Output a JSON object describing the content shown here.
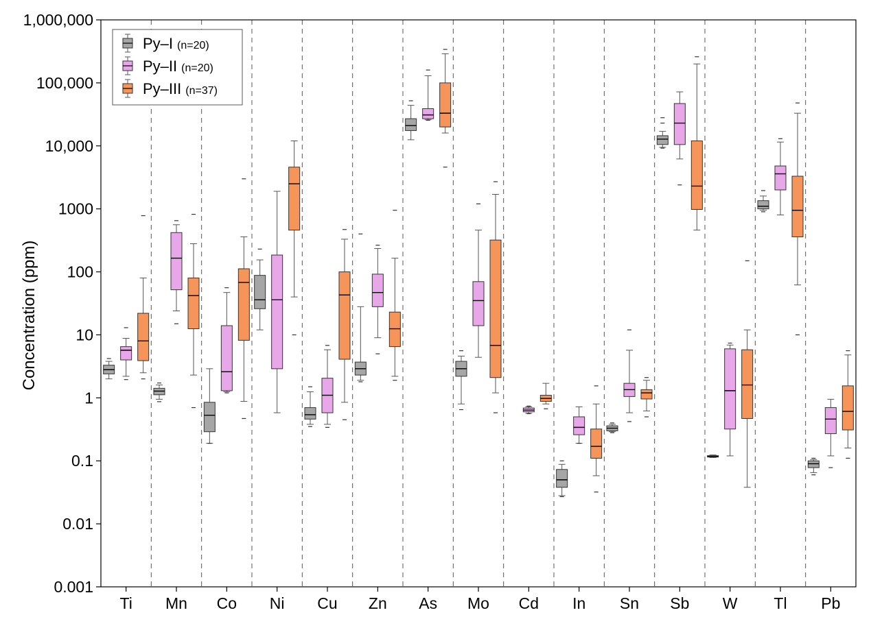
{
  "chart_data": {
    "type": "box",
    "ylabel": "Concentration (ppm)",
    "yscale": "log",
    "ylim": [
      0.001,
      1000000
    ],
    "yticks": [
      {
        "value": 0.001,
        "label": "0.001"
      },
      {
        "value": 0.01,
        "label": "0.01"
      },
      {
        "value": 0.1,
        "label": "0.1"
      },
      {
        "value": 1,
        "label": "1"
      },
      {
        "value": 10,
        "label": "10"
      },
      {
        "value": 100,
        "label": "100"
      },
      {
        "value": 1000,
        "label": "1000"
      },
      {
        "value": 10000,
        "label": "10,000"
      },
      {
        "value": 100000,
        "label": "100,000"
      },
      {
        "value": 1000000,
        "label": "1,000,000"
      }
    ],
    "categories": [
      "Ti",
      "Mn",
      "Co",
      "Ni",
      "Cu",
      "Zn",
      "As",
      "Mo",
      "Cd",
      "In",
      "Sn",
      "Sb",
      "W",
      "Tl",
      "Pb"
    ],
    "legend_position": "top-left",
    "series": [
      {
        "name": "Py–I",
        "n_label": "(n=20)",
        "color": "#a6a6a6",
        "boxes": [
          {
            "category": "Ti",
            "min": 2.0,
            "q1": 2.4,
            "median": 2.8,
            "q3": 3.3,
            "max": 3.8,
            "outliers": [
              4.2
            ]
          },
          {
            "category": "Mn",
            "min": 0.95,
            "q1": 1.12,
            "median": 1.28,
            "q3": 1.42,
            "max": 1.6,
            "outliers": [
              0.87,
              1.72
            ]
          },
          {
            "category": "Co",
            "min": 0.19,
            "q1": 0.29,
            "median": 0.53,
            "q3": 0.85,
            "max": 2.9,
            "outliers": [
              0.19
            ]
          },
          {
            "category": "Ni",
            "min": 12,
            "q1": 26,
            "median": 36,
            "q3": 88,
            "max": 155,
            "outliers": [
              230
            ]
          },
          {
            "category": "Cu",
            "min": 0.38,
            "q1": 0.46,
            "median": 0.54,
            "q3": 0.7,
            "max": 1.25,
            "outliers": [
              0.35,
              1.5
            ]
          },
          {
            "category": "Zn",
            "min": 1.9,
            "q1": 2.3,
            "median": 2.9,
            "q3": 3.7,
            "max": 28,
            "outliers": [
              1.8,
              400
            ]
          },
          {
            "category": "As",
            "min": 12500,
            "q1": 17500,
            "median": 21000,
            "q3": 27000,
            "max": 44000,
            "outliers": [
              52000
            ]
          },
          {
            "category": "Mo",
            "min": 0.8,
            "q1": 2.2,
            "median": 2.9,
            "q3": 3.8,
            "max": 4.6,
            "outliers": [
              0.65,
              5.6
            ]
          },
          {
            "category": "In",
            "min": 0.028,
            "q1": 0.038,
            "median": 0.05,
            "q3": 0.073,
            "max": 0.088,
            "outliers": [
              0.027,
              0.1
            ]
          },
          {
            "category": "Sn",
            "min": 0.29,
            "q1": 0.3,
            "median": 0.33,
            "q3": 0.36,
            "max": 0.38,
            "outliers": [
              0.28,
              0.4
            ]
          },
          {
            "category": "Sb",
            "min": 9500,
            "q1": 10500,
            "median": 12800,
            "q3": 14500,
            "max": 17000,
            "outliers": [
              9200,
              23000,
              28000
            ]
          },
          {
            "category": "W",
            "min": 0.113,
            "q1": 0.115,
            "median": 0.117,
            "q3": 0.121,
            "max": 0.124,
            "outliers": []
          },
          {
            "category": "Tl",
            "min": 950,
            "q1": 1000,
            "median": 1100,
            "q3": 1350,
            "max": 1600,
            "outliers": [
              900,
              1950
            ]
          },
          {
            "category": "Pb",
            "min": 0.065,
            "q1": 0.078,
            "median": 0.09,
            "q3": 0.1,
            "max": 0.105,
            "outliers": [
              0.06,
              0.11
            ]
          }
        ]
      },
      {
        "name": "Py–II",
        "n_label": "(n=20)",
        "color": "#e8a7e8",
        "boxes": [
          {
            "category": "Ti",
            "min": 2.2,
            "q1": 4.0,
            "median": 5.7,
            "q3": 6.5,
            "max": 8.8,
            "outliers": [
              1.95,
              13
            ]
          },
          {
            "category": "Mn",
            "min": 24,
            "q1": 52,
            "median": 165,
            "q3": 420,
            "max": 560,
            "outliers": [
              15,
              650
            ]
          },
          {
            "category": "Co",
            "min": 1.25,
            "q1": 1.3,
            "median": 2.6,
            "q3": 14,
            "max": 47,
            "outliers": [
              1.2,
              56
            ]
          },
          {
            "category": "Ni",
            "min": 0.58,
            "q1": 2.9,
            "median": 36,
            "q3": 185,
            "max": 1900,
            "outliers": []
          },
          {
            "category": "Cu",
            "min": 0.38,
            "q1": 0.58,
            "median": 1.1,
            "q3": 2.05,
            "max": 5.8,
            "outliers": [
              0.34,
              6.8
            ]
          },
          {
            "category": "Zn",
            "min": 9,
            "q1": 28,
            "median": 47,
            "q3": 92,
            "max": 235,
            "outliers": [
              5,
              265
            ]
          },
          {
            "category": "As",
            "min": 26000,
            "q1": 27000,
            "median": 31000,
            "q3": 39000,
            "max": 130000,
            "outliers": [
              25500,
              160000
            ]
          },
          {
            "category": "Mo",
            "min": 4.4,
            "q1": 14,
            "median": 35,
            "q3": 70,
            "max": 460,
            "outliers": [
              1200
            ]
          },
          {
            "category": "Cd",
            "min": 0.57,
            "q1": 0.6,
            "median": 0.64,
            "q3": 0.69,
            "max": 0.72,
            "outliers": [
              0.56,
              0.74
            ]
          },
          {
            "category": "In",
            "min": 0.19,
            "q1": 0.26,
            "median": 0.34,
            "q3": 0.5,
            "max": 0.72,
            "outliers": [
              0.19
            ]
          },
          {
            "category": "Sn",
            "min": 0.58,
            "q1": 1.05,
            "median": 1.35,
            "q3": 1.7,
            "max": 5.7,
            "outliers": [
              0.42,
              12
            ]
          },
          {
            "category": "Sb",
            "min": 6200,
            "q1": 10500,
            "median": 23000,
            "q3": 47000,
            "max": 72000,
            "outliers": [
              2400
            ]
          },
          {
            "category": "W",
            "min": 0.12,
            "q1": 0.32,
            "median": 1.3,
            "q3": 6.0,
            "max": 6.9,
            "outliers": [
              7.4
            ]
          },
          {
            "category": "Tl",
            "min": 800,
            "q1": 2000,
            "median": 3600,
            "q3": 4800,
            "max": 11500,
            "outliers": [
              13000
            ]
          },
          {
            "category": "Pb",
            "min": 0.12,
            "q1": 0.27,
            "median": 0.46,
            "q3": 0.7,
            "max": 0.95,
            "outliers": [
              0.078
            ]
          }
        ]
      },
      {
        "name": "Py–III",
        "n_label": "(n=37)",
        "color": "#f5955a",
        "boxes": [
          {
            "category": "Ti",
            "min": 2.5,
            "q1": 3.9,
            "median": 8,
            "q3": 22,
            "max": 80,
            "outliers": [
              2.0,
              780
            ]
          },
          {
            "category": "Mn",
            "min": 2.3,
            "q1": 12.5,
            "median": 42,
            "q3": 80,
            "max": 280,
            "outliers": [
              0.7,
              820
            ]
          },
          {
            "category": "Co",
            "min": 0.88,
            "q1": 8.2,
            "median": 68,
            "q3": 112,
            "max": 360,
            "outliers": [
              0.47,
              3000
            ]
          },
          {
            "category": "Ni",
            "min": 40,
            "q1": 460,
            "median": 2500,
            "q3": 4600,
            "max": 12000,
            "outliers": [
              10
            ]
          },
          {
            "category": "Cu",
            "min": 0.85,
            "q1": 4.1,
            "median": 43,
            "q3": 100,
            "max": 330,
            "outliers": [
              0.45,
              470
            ]
          },
          {
            "category": "Zn",
            "min": 2.2,
            "q1": 6.5,
            "median": 12.5,
            "q3": 23,
            "max": 165,
            "outliers": [
              1.9,
              950
            ]
          },
          {
            "category": "As",
            "min": 16000,
            "q1": 20000,
            "median": 33000,
            "q3": 100000,
            "max": 290000,
            "outliers": [
              4600,
              340000
            ]
          },
          {
            "category": "Mo",
            "min": 1.2,
            "q1": 2.1,
            "median": 6.8,
            "q3": 320,
            "max": 1700,
            "outliers": [
              0.58,
              2700
            ]
          },
          {
            "category": "Cd",
            "min": 0.8,
            "q1": 0.88,
            "median": 0.98,
            "q3": 1.1,
            "max": 1.7,
            "outliers": [
              0.67
            ]
          },
          {
            "category": "In",
            "min": 0.058,
            "q1": 0.11,
            "median": 0.17,
            "q3": 0.32,
            "max": 0.8,
            "outliers": [
              0.032,
              1.55
            ]
          },
          {
            "category": "Sn",
            "min": 0.62,
            "q1": 0.96,
            "median": 1.2,
            "q3": 1.35,
            "max": 1.9,
            "outliers": [
              0.5,
              2.1
            ]
          },
          {
            "category": "Sb",
            "min": 460,
            "q1": 980,
            "median": 2300,
            "q3": 12000,
            "max": 200000,
            "outliers": [
              260000
            ]
          },
          {
            "category": "W",
            "min": 0.038,
            "q1": 0.47,
            "median": 1.6,
            "q3": 5.8,
            "max": 12,
            "outliers": [
              150
            ]
          },
          {
            "category": "Tl",
            "min": 62,
            "q1": 360,
            "median": 950,
            "q3": 3300,
            "max": 33000,
            "outliers": [
              10,
              48000
            ]
          },
          {
            "category": "Pb",
            "min": 0.16,
            "q1": 0.31,
            "median": 0.61,
            "q3": 1.55,
            "max": 4.8,
            "outliers": [
              0.11,
              5.6
            ]
          }
        ]
      }
    ]
  }
}
